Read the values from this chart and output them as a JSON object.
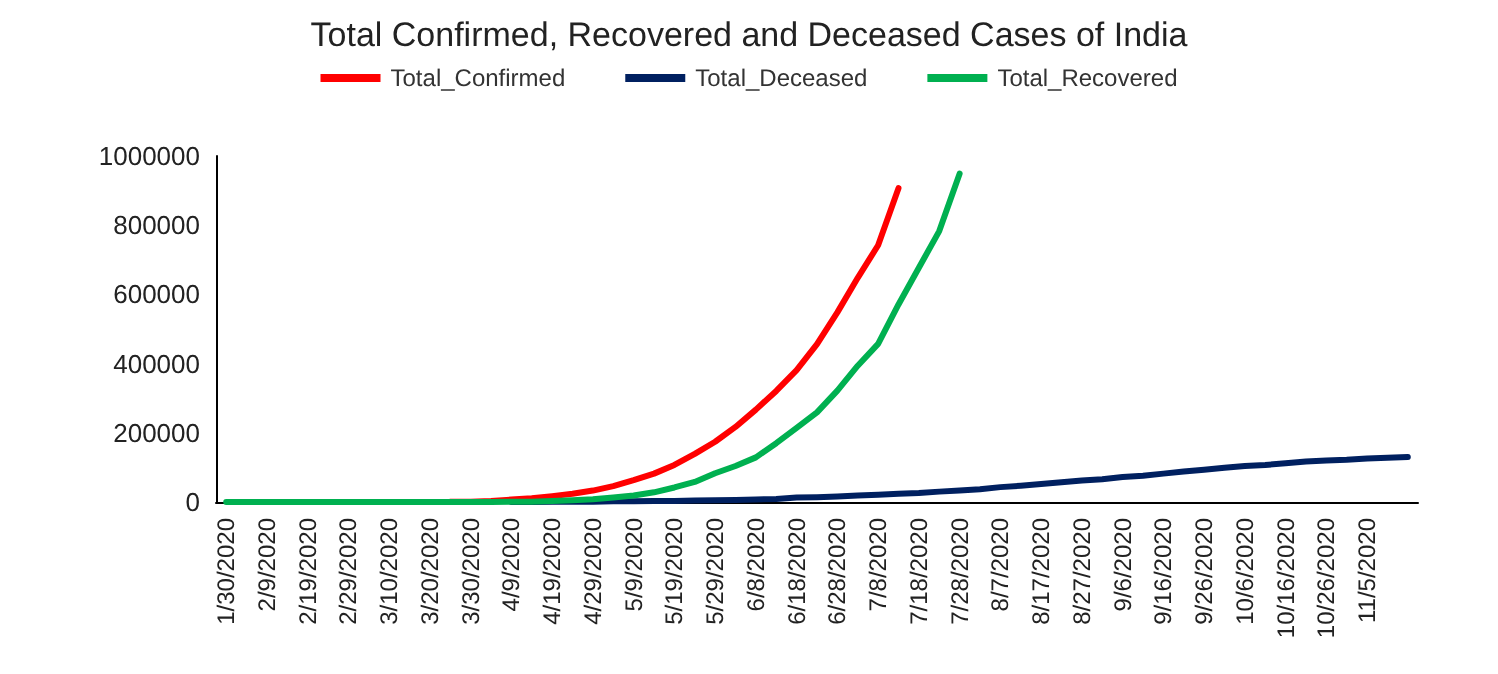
{
  "chart_data": {
    "type": "line",
    "title": "Total Confirmed, Recovered and Deceased Cases of India",
    "categories": [
      "1/30/2020",
      null,
      "2/9/2020",
      null,
      "2/19/2020",
      null,
      "2/29/2020",
      null,
      "3/10/2020",
      null,
      "3/20/2020",
      null,
      "3/30/2020",
      null,
      "4/9/2020",
      null,
      "4/19/2020",
      null,
      "4/29/2020",
      null,
      "5/9/2020",
      null,
      "5/19/2020",
      null,
      "5/29/2020",
      null,
      "6/8/2020",
      null,
      "6/18/2020",
      null,
      "6/28/2020",
      null,
      "7/8/2020",
      null,
      "7/18/2020",
      null,
      "7/28/2020",
      null,
      "8/7/2020",
      null,
      "8/17/2020",
      null,
      "8/27/2020",
      null,
      "9/6/2020",
      null,
      "9/16/2020",
      null,
      "9/26/2020",
      null,
      "10/6/2020",
      null,
      "10/16/2020",
      null,
      "10/26/2020",
      null,
      "11/5/2020",
      null,
      null
    ],
    "series": [
      {
        "name": "Total_Confirmed",
        "color": "#ff0000",
        "values": [
          null,
          null,
          null,
          null,
          null,
          null,
          null,
          null,
          null,
          null,
          null,
          1000,
          1000,
          3000,
          7000,
          11000,
          17000,
          24000,
          33000,
          46000,
          63000,
          82000,
          107000,
          139000,
          174000,
          217000,
          267000,
          321000,
          381000,
          456000,
          548000,
          648000,
          742000,
          907000,
          null,
          null,
          null,
          null,
          null,
          null,
          null,
          null,
          null,
          null,
          null,
          null,
          null,
          null,
          null,
          null,
          null,
          null,
          null,
          null,
          null,
          null,
          null,
          null,
          null
        ]
      },
      {
        "name": "Total_Deceased",
        "color": "#002060",
        "values": [
          null,
          null,
          null,
          null,
          null,
          null,
          null,
          null,
          null,
          null,
          null,
          null,
          null,
          null,
          0,
          0,
          1000,
          1000,
          1000,
          2000,
          2000,
          3000,
          3000,
          4000,
          5000,
          6000,
          7000,
          9000,
          13000,
          14000,
          16000,
          19000,
          21000,
          24000,
          26000,
          30000,
          33000,
          37000,
          43000,
          47000,
          52000,
          57000,
          62000,
          66000,
          72000,
          76000,
          82000,
          88000,
          93000,
          99000,
          104000,
          107000,
          112000,
          117000,
          120000,
          122000,
          126000,
          128000,
          130000
        ]
      },
      {
        "name": "Total_Recovered",
        "color": "#00b050",
        "values": [
          0,
          0,
          0,
          0,
          0,
          0,
          0,
          0,
          0,
          0,
          0,
          0,
          0,
          0,
          1000,
          1000,
          3000,
          5000,
          8000,
          13000,
          19000,
          28000,
          42000,
          58000,
          83000,
          104000,
          129000,
          170000,
          214000,
          259000,
          322000,
          394000,
          457000,
          571000,
          677000,
          783000,
          949000,
          null,
          null,
          null,
          null,
          null,
          null,
          null,
          null,
          null,
          null,
          null,
          null,
          null,
          null,
          null,
          null,
          null,
          null,
          null,
          null,
          null,
          null
        ]
      }
    ],
    "ylim": [
      0,
      1000000
    ],
    "yticks": [
      0,
      200000,
      400000,
      600000,
      800000,
      1000000
    ],
    "grid": false,
    "legend": "top",
    "marker": "none",
    "line_style": "solid"
  }
}
